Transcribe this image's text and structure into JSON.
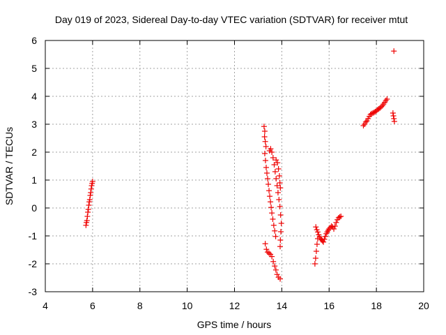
{
  "chart_data": {
    "type": "scatter",
    "title": "Day 019 of 2023, Sidereal Day-to-day VTEC variation (SDTVAR) for receiver mtut",
    "xlabel": "GPS time / hours",
    "ylabel": "SDTVAR / TECUs",
    "xlim": [
      4,
      20
    ],
    "ylim": [
      -3,
      6
    ],
    "xticks": [
      4,
      6,
      8,
      10,
      12,
      14,
      16,
      18,
      20
    ],
    "yticks": [
      -3,
      -2,
      -1,
      0,
      1,
      2,
      3,
      4,
      5,
      6
    ],
    "grid": true,
    "marker": "+",
    "color": "#ee0000",
    "series": [
      {
        "name": "SDTVAR",
        "points": [
          [
            5.72,
            -0.62
          ],
          [
            5.74,
            -0.52
          ],
          [
            5.76,
            -0.45
          ],
          [
            5.78,
            -0.3
          ],
          [
            5.8,
            -0.15
          ],
          [
            5.82,
            -0.05
          ],
          [
            5.84,
            0.1
          ],
          [
            5.86,
            0.22
          ],
          [
            5.88,
            0.3
          ],
          [
            5.9,
            0.45
          ],
          [
            5.92,
            0.55
          ],
          [
            5.94,
            0.68
          ],
          [
            5.96,
            0.8
          ],
          [
            5.98,
            0.88
          ],
          [
            6.0,
            0.95
          ],
          [
            13.25,
            2.92
          ],
          [
            13.28,
            2.75
          ],
          [
            13.27,
            2.55
          ],
          [
            13.3,
            2.38
          ],
          [
            13.33,
            2.2
          ],
          [
            13.28,
            1.95
          ],
          [
            13.31,
            1.7
          ],
          [
            13.34,
            1.45
          ],
          [
            13.37,
            1.25
          ],
          [
            13.4,
            1.05
          ],
          [
            13.43,
            0.85
          ],
          [
            13.46,
            0.62
          ],
          [
            13.49,
            0.42
          ],
          [
            13.52,
            0.22
          ],
          [
            13.55,
            0.02
          ],
          [
            13.58,
            -0.18
          ],
          [
            13.62,
            -0.4
          ],
          [
            13.66,
            -0.62
          ],
          [
            13.7,
            -0.82
          ],
          [
            13.74,
            -1.02
          ],
          [
            13.48,
            2.05
          ],
          [
            13.53,
            2.12
          ],
          [
            13.58,
            2.0
          ],
          [
            13.63,
            1.8
          ],
          [
            13.68,
            1.55
          ],
          [
            13.72,
            1.3
          ],
          [
            13.76,
            1.05
          ],
          [
            13.8,
            0.8
          ],
          [
            13.84,
            0.55
          ],
          [
            13.88,
            0.3
          ],
          [
            13.92,
            0.05
          ],
          [
            13.95,
            -0.25
          ],
          [
            13.98,
            -0.55
          ],
          [
            13.96,
            -0.85
          ],
          [
            13.94,
            -1.15
          ],
          [
            13.93,
            -1.38
          ],
          [
            13.76,
            1.72
          ],
          [
            13.82,
            1.62
          ],
          [
            13.86,
            1.4
          ],
          [
            13.9,
            1.15
          ],
          [
            13.92,
            0.9
          ],
          [
            13.94,
            0.72
          ],
          [
            13.3,
            -1.28
          ],
          [
            13.35,
            -1.48
          ],
          [
            13.4,
            -1.58
          ],
          [
            13.46,
            -1.62
          ],
          [
            13.52,
            -1.66
          ],
          [
            13.58,
            -1.74
          ],
          [
            13.64,
            -1.92
          ],
          [
            13.7,
            -2.08
          ],
          [
            13.75,
            -2.22
          ],
          [
            13.8,
            -2.38
          ],
          [
            13.86,
            -2.48
          ],
          [
            13.93,
            -2.54
          ],
          [
            15.4,
            -2.0
          ],
          [
            15.43,
            -1.8
          ],
          [
            15.46,
            -1.55
          ],
          [
            15.49,
            -1.3
          ],
          [
            15.52,
            -1.1
          ],
          [
            15.44,
            -0.68
          ],
          [
            15.48,
            -0.78
          ],
          [
            15.52,
            -0.86
          ],
          [
            15.56,
            -0.96
          ],
          [
            15.6,
            -1.04
          ],
          [
            15.64,
            -1.1
          ],
          [
            15.68,
            -1.14
          ],
          [
            15.72,
            -1.18
          ],
          [
            15.76,
            -1.22
          ],
          [
            15.8,
            -1.12
          ],
          [
            15.84,
            -1.02
          ],
          [
            15.88,
            -0.92
          ],
          [
            15.92,
            -0.86
          ],
          [
            15.96,
            -0.8
          ],
          [
            16.0,
            -0.75
          ],
          [
            16.05,
            -0.7
          ],
          [
            16.1,
            -0.65
          ],
          [
            16.15,
            -0.68
          ],
          [
            16.2,
            -0.75
          ],
          [
            16.25,
            -0.65
          ],
          [
            16.3,
            -0.52
          ],
          [
            16.35,
            -0.42
          ],
          [
            16.4,
            -0.35
          ],
          [
            16.45,
            -0.32
          ],
          [
            16.5,
            -0.3
          ],
          [
            17.45,
            2.95
          ],
          [
            17.5,
            3.0
          ],
          [
            17.55,
            3.08
          ],
          [
            17.6,
            3.12
          ],
          [
            17.65,
            3.2
          ],
          [
            17.7,
            3.28
          ],
          [
            17.75,
            3.35
          ],
          [
            17.8,
            3.38
          ],
          [
            17.85,
            3.4
          ],
          [
            17.9,
            3.42
          ],
          [
            17.95,
            3.45
          ],
          [
            18.0,
            3.48
          ],
          [
            18.05,
            3.52
          ],
          [
            18.1,
            3.55
          ],
          [
            18.15,
            3.58
          ],
          [
            18.2,
            3.62
          ],
          [
            18.25,
            3.66
          ],
          [
            18.3,
            3.72
          ],
          [
            18.35,
            3.78
          ],
          [
            18.4,
            3.85
          ],
          [
            18.45,
            3.9
          ],
          [
            18.7,
            3.4
          ],
          [
            18.72,
            3.3
          ],
          [
            18.74,
            3.2
          ],
          [
            18.76,
            3.1
          ],
          [
            18.74,
            5.62
          ]
        ]
      }
    ]
  }
}
